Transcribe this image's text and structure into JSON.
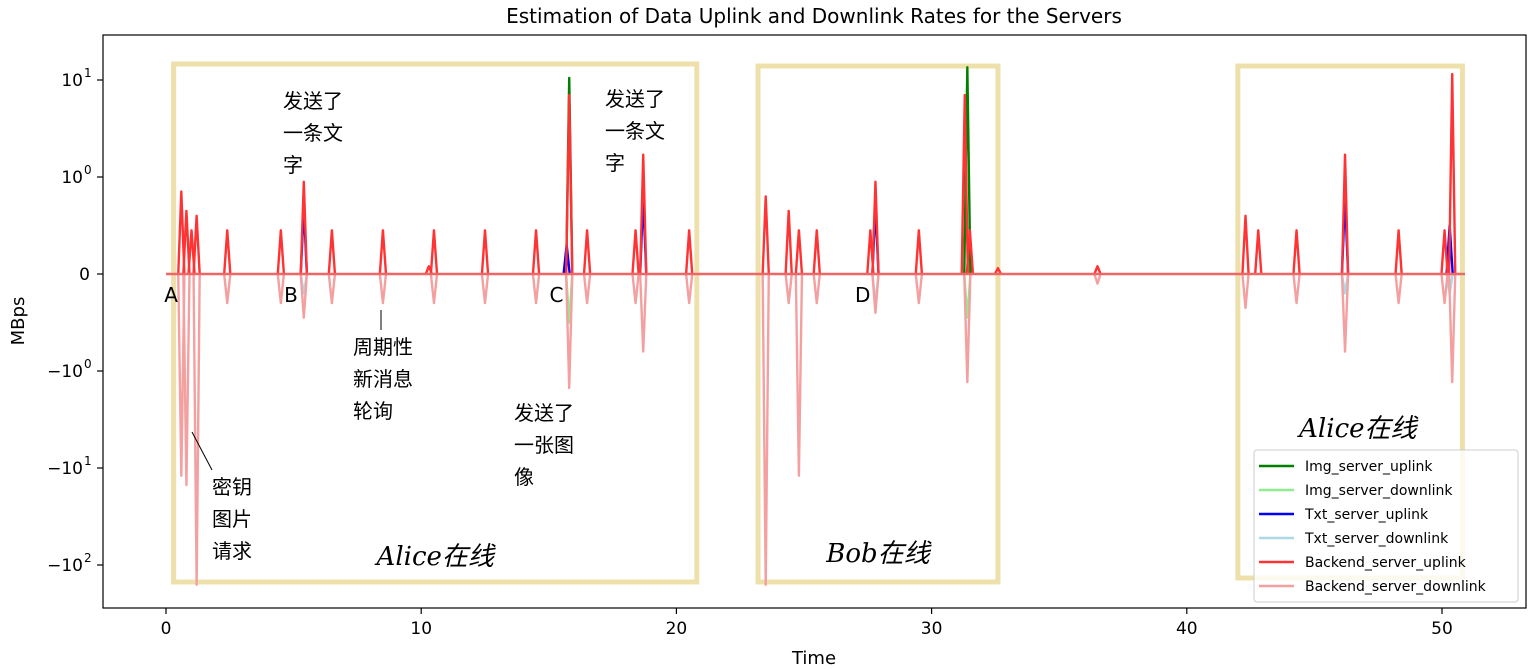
{
  "chart_data": {
    "type": "line",
    "title": "Estimation of Data Uplink and Downlink Rates for the Servers",
    "xlabel": "Time",
    "ylabel": "MBps",
    "xlim": [
      -2.5,
      53.5
    ],
    "x_ticks": [
      0,
      10,
      20,
      30,
      40,
      50
    ],
    "y_scale": "symlog",
    "y_ticks": [
      {
        "value": 10,
        "label": "10^1",
        "base": "10",
        "exp": "1"
      },
      {
        "value": 1,
        "label": "10^0",
        "base": "10",
        "exp": "0"
      },
      {
        "value": 0,
        "label": "0",
        "base": "0",
        "exp": ""
      },
      {
        "value": -1,
        "label": "-10^0",
        "base": "−10",
        "exp": "0"
      },
      {
        "value": -10,
        "label": "-10^1",
        "base": "−10",
        "exp": "1"
      },
      {
        "value": -100,
        "label": "-10^2",
        "base": "−10",
        "exp": "2"
      }
    ],
    "grid": false,
    "legend_position": "bottom-right",
    "series": [
      {
        "name": "Img_server_uplink",
        "color": "#008000",
        "points": [
          [
            15.8,
            10.5
          ],
          [
            31.4,
            13.5
          ]
        ]
      },
      {
        "name": "Img_server_downlink",
        "color": "#90ee90",
        "points": [
          [
            15.8,
            -0.5
          ],
          [
            31.4,
            -0.45
          ]
        ]
      },
      {
        "name": "Txt_server_uplink",
        "color": "#0000ff",
        "points": [
          [
            5.4,
            0.7
          ],
          [
            15.7,
            0.3
          ],
          [
            18.7,
            0.8
          ],
          [
            27.8,
            0.7
          ],
          [
            46.2,
            0.8
          ],
          [
            50.3,
            0.5
          ]
        ]
      },
      {
        "name": "Txt_server_downlink",
        "color": "#add8e6",
        "points": [
          [
            5.4,
            -0.2
          ],
          [
            27.8,
            -0.3
          ],
          [
            46.2,
            -0.2
          ],
          [
            50.3,
            -0.2
          ]
        ]
      },
      {
        "name": "Backend_server_uplink",
        "color": "#ff3333",
        "points": [
          [
            0.6,
            0.85
          ],
          [
            0.8,
            0.65
          ],
          [
            1.0,
            0.45
          ],
          [
            1.2,
            0.6
          ],
          [
            2.4,
            0.45
          ],
          [
            4.5,
            0.45
          ],
          [
            5.4,
            0.95
          ],
          [
            6.5,
            0.45
          ],
          [
            8.5,
            0.45
          ],
          [
            10.3,
            0.08
          ],
          [
            10.5,
            0.45
          ],
          [
            12.5,
            0.45
          ],
          [
            14.5,
            0.45
          ],
          [
            15.8,
            7.0
          ],
          [
            16.5,
            0.45
          ],
          [
            18.4,
            0.45
          ],
          [
            18.7,
            1.7
          ],
          [
            20.5,
            0.45
          ],
          [
            23.5,
            0.8
          ],
          [
            24.4,
            0.65
          ],
          [
            24.8,
            0.45
          ],
          [
            25.5,
            0.45
          ],
          [
            27.6,
            0.45
          ],
          [
            27.8,
            0.95
          ],
          [
            29.5,
            0.45
          ],
          [
            31.3,
            7.0
          ],
          [
            31.5,
            0.45
          ],
          [
            32.6,
            0.06
          ],
          [
            36.5,
            0.08
          ],
          [
            42.3,
            0.6
          ],
          [
            42.8,
            0.45
          ],
          [
            44.3,
            0.45
          ],
          [
            46.2,
            1.7
          ],
          [
            48.3,
            0.45
          ],
          [
            50.1,
            0.45
          ],
          [
            50.4,
            11.5
          ]
        ]
      },
      {
        "name": "Backend_server_downlink",
        "color": "#f4a0a0",
        "points": [
          [
            0.6,
            -12
          ],
          [
            0.8,
            -15
          ],
          [
            1.2,
            -160
          ],
          [
            2.4,
            -0.3
          ],
          [
            4.5,
            -0.3
          ],
          [
            5.4,
            -0.45
          ],
          [
            6.5,
            -0.3
          ],
          [
            8.5,
            -0.3
          ],
          [
            10.5,
            -0.3
          ],
          [
            12.5,
            -0.3
          ],
          [
            14.5,
            -0.3
          ],
          [
            15.8,
            -1.5
          ],
          [
            16.5,
            -0.3
          ],
          [
            18.4,
            -0.3
          ],
          [
            18.7,
            -0.8
          ],
          [
            20.5,
            -0.3
          ],
          [
            23.5,
            -160
          ],
          [
            24.4,
            -0.3
          ],
          [
            24.8,
            -12
          ],
          [
            25.5,
            -0.3
          ],
          [
            27.8,
            -0.4
          ],
          [
            29.5,
            -0.3
          ],
          [
            31.4,
            -1.3
          ],
          [
            36.5,
            -0.1
          ],
          [
            42.3,
            -0.35
          ],
          [
            44.3,
            -0.3
          ],
          [
            46.2,
            -0.8
          ],
          [
            48.3,
            -0.3
          ],
          [
            50.1,
            -0.3
          ],
          [
            50.4,
            -1.3
          ]
        ]
      }
    ],
    "point_labels": [
      {
        "x": 0.2,
        "text": "A"
      },
      {
        "x": 4.9,
        "text": "B"
      },
      {
        "x": 15.3,
        "text": "C"
      },
      {
        "x": 27.3,
        "text": "D"
      }
    ],
    "regions": [
      {
        "x0": 0.3,
        "x1": 20.8,
        "label": "Alice在线"
      },
      {
        "x0": 23.2,
        "x1": 32.6,
        "label": "Bob在线"
      },
      {
        "x0": 42.0,
        "x1": 50.8,
        "label": "Alice在线"
      }
    ],
    "annotations": [
      {
        "lines": [
          "发送了",
          "一条文",
          "字"
        ]
      },
      {
        "lines": [
          "发送了",
          "一条文",
          "字"
        ]
      },
      {
        "lines": [
          "周期性",
          "新消息",
          "轮询"
        ]
      },
      {
        "lines": [
          "发送了",
          "一张图",
          "像"
        ]
      },
      {
        "lines": [
          "密钥",
          "图片",
          "请求"
        ]
      }
    ]
  }
}
